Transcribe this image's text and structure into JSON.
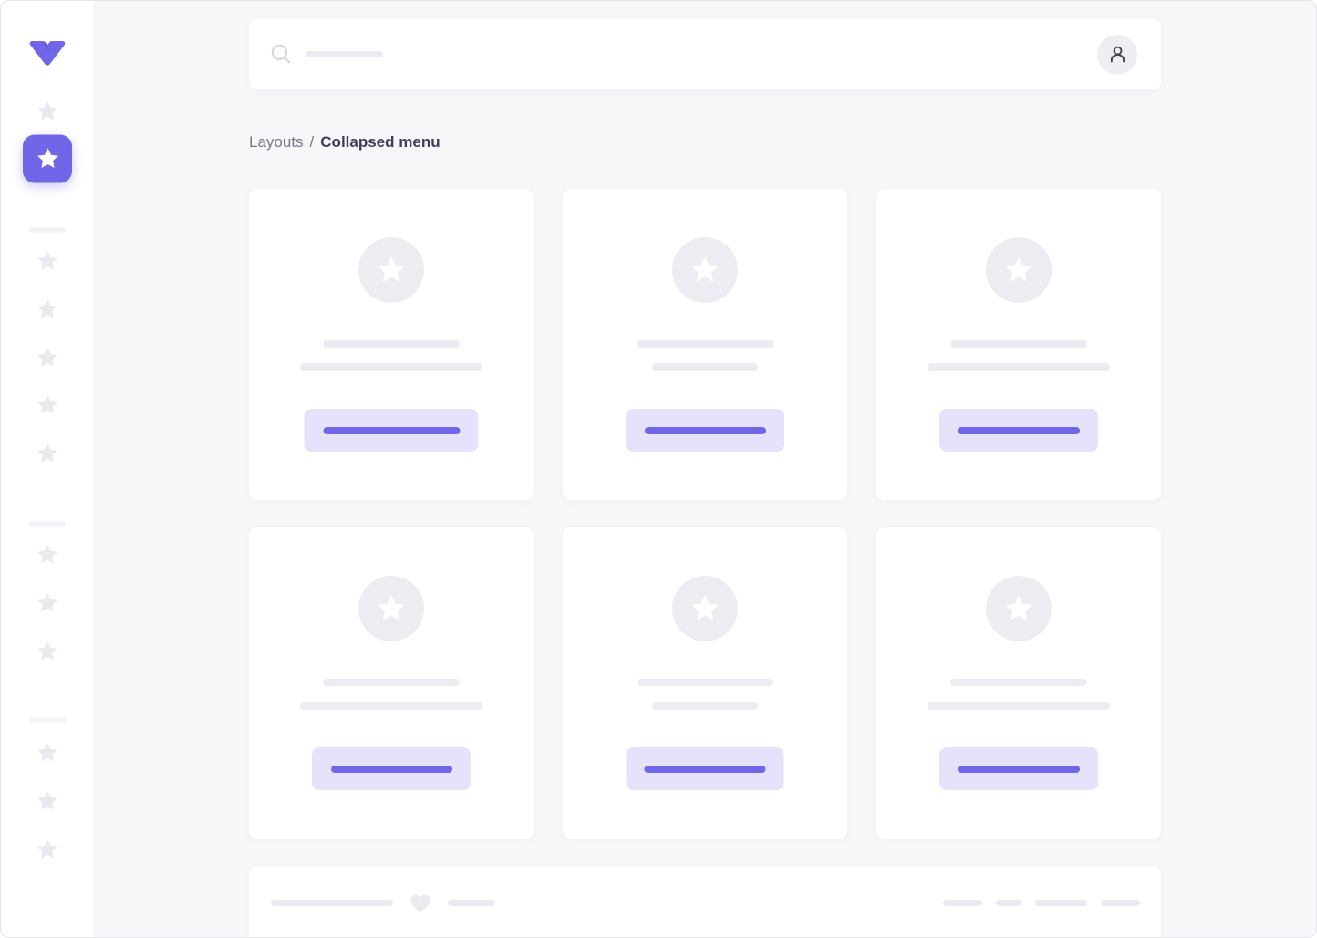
{
  "colors": {
    "accent": "#7166e8",
    "accent_light": "#e6e2fb",
    "skeleton": "#ecedf2",
    "pill": "#e9ebf0",
    "sidebar_star": "#e8eaf0",
    "bg": "#f6f7f9",
    "icon_dark": "#3f4254",
    "search_icon_gray": "#d4d7de"
  },
  "sidebar": {
    "logo_icon": "vuesax-logo",
    "items": [
      {
        "type": "item",
        "icon": "star",
        "active": false
      },
      {
        "type": "item",
        "icon": "star",
        "active": true
      },
      {
        "type": "divider"
      },
      {
        "type": "item",
        "icon": "star",
        "active": false
      },
      {
        "type": "item",
        "icon": "star",
        "active": false
      },
      {
        "type": "item",
        "icon": "star",
        "active": false
      },
      {
        "type": "item",
        "icon": "star",
        "active": false
      },
      {
        "type": "item",
        "icon": "star",
        "active": false
      },
      {
        "type": "divider"
      },
      {
        "type": "item",
        "icon": "star",
        "active": false
      },
      {
        "type": "item",
        "icon": "star",
        "active": false
      },
      {
        "type": "item",
        "icon": "star",
        "active": false
      },
      {
        "type": "divider"
      },
      {
        "type": "item",
        "icon": "star",
        "active": false
      },
      {
        "type": "item",
        "icon": "star",
        "active": false
      },
      {
        "type": "item",
        "icon": "star",
        "active": false
      }
    ]
  },
  "topbar": {
    "search_icon": "magnifier-icon",
    "search_placeholder_pill_width": 85,
    "avatar_icon": "person-icon"
  },
  "breadcrumb": {
    "parent": "Layouts",
    "separator": "/",
    "current": "Collapsed menu"
  },
  "cards": [
    {
      "icon": "star",
      "line1_width": 150,
      "line2_width": 200,
      "button_width": 191,
      "button_bar_width": 150
    },
    {
      "icon": "star",
      "line1_width": 150,
      "line2_width": 116,
      "button_width": 174,
      "button_bar_width": 133
    },
    {
      "icon": "star",
      "line1_width": 150,
      "line2_width": 200,
      "button_width": 174,
      "button_bar_width": 134
    },
    {
      "icon": "star",
      "line1_width": 150,
      "line2_width": 201,
      "button_width": 174,
      "button_bar_width": 133
    },
    {
      "icon": "star",
      "line1_width": 148,
      "line2_width": 116,
      "button_width": 173,
      "button_bar_width": 133
    },
    {
      "icon": "star",
      "line1_width": 150,
      "line2_width": 200,
      "button_width": 174,
      "button_bar_width": 134
    }
  ],
  "footer": {
    "left_pill_widths": [
      134,
      52
    ],
    "heart_icon": "heart-icon",
    "right_pill_widths": [
      43,
      28,
      57,
      43
    ]
  }
}
